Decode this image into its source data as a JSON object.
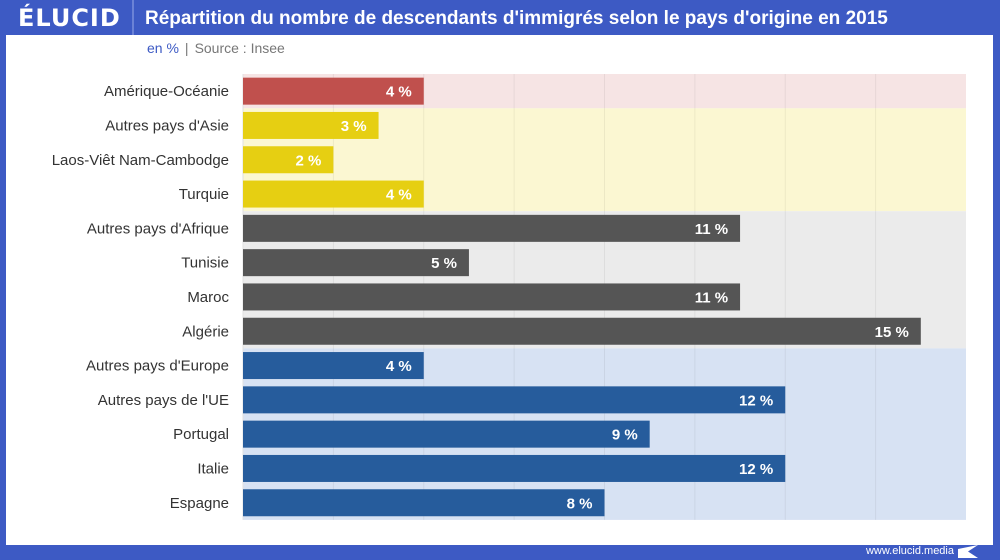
{
  "header": {
    "logo": "ÉLUCID",
    "title": "Répartition du nombre de descendants d'immigrés selon le pays d'origine en 2015"
  },
  "subtitle": {
    "unit": "en %",
    "separator": "|",
    "source": "Source : Insee"
  },
  "footer": {
    "url": "www.elucid.media"
  },
  "colors": {
    "brand": "#3d5ac4",
    "ameriques": "#c0504d",
    "asie": "#e6cf12",
    "afrique": "#555555",
    "europe": "#265c9c"
  },
  "chart_data": {
    "type": "bar",
    "orientation": "horizontal",
    "title": "Répartition du nombre de descendants d'immigrés selon le pays d'origine en 2015",
    "xlabel": "en %",
    "ylabel": "",
    "xlim": [
      0,
      16
    ],
    "grid": true,
    "categories": [
      "Amérique-Océanie",
      "Autres pays d'Asie",
      "Laos-Viêt Nam-Cambodge",
      "Turquie",
      "Autres pays d'Afrique",
      "Tunisie",
      "Maroc",
      "Algérie",
      "Autres pays d'Europe",
      "Autres pays de l'UE",
      "Portugal",
      "Italie",
      "Espagne"
    ],
    "values": [
      4,
      3,
      2,
      4,
      11,
      5,
      11,
      15,
      4,
      12,
      9,
      12,
      8
    ],
    "value_labels": [
      "4 %",
      "3 %",
      "2 %",
      "4 %",
      "11 %",
      "5 %",
      "11 %",
      "15 %",
      "4 %",
      "12 %",
      "9 %",
      "12 %",
      "8 %"
    ],
    "groups": [
      {
        "name": "Amérique-Océanie",
        "color": "#c0504d",
        "background": "#f6e4e4",
        "members": [
          0
        ]
      },
      {
        "name": "Asie",
        "color": "#e6cf12",
        "background": "#fbf7d2",
        "members": [
          1,
          2,
          3
        ]
      },
      {
        "name": "Afrique",
        "color": "#555555",
        "background": "#ebebeb",
        "members": [
          4,
          5,
          6,
          7
        ]
      },
      {
        "name": "Europe",
        "color": "#265c9c",
        "background": "#d7e2f3",
        "members": [
          8,
          9,
          10,
          11,
          12
        ]
      }
    ]
  }
}
